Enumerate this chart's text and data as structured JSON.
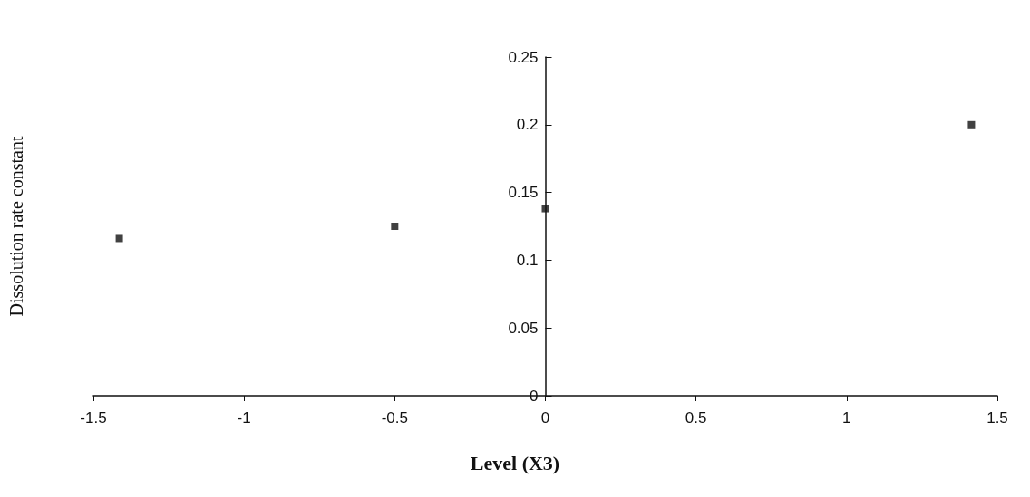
{
  "chart_data": {
    "type": "scatter",
    "xlabel": "Level (X3)",
    "ylabel": "Dissolution rate constant",
    "x": [
      -1.414,
      -0.5,
      0,
      1.414
    ],
    "series": [
      {
        "color": "#111111",
        "values": [
          0.116,
          0.125,
          0.138,
          0.2
        ]
      }
    ],
    "xlim": [
      -1.5,
      1.5
    ],
    "xticks": [
      -1.5,
      -1,
      -0.5,
      0,
      0.5,
      1,
      1.5
    ],
    "ylim": [
      0,
      0.25
    ],
    "yticks": [
      0,
      0.05,
      0.1,
      0.15,
      0.2,
      0.25
    ],
    "marker": "square",
    "grid": false
  }
}
